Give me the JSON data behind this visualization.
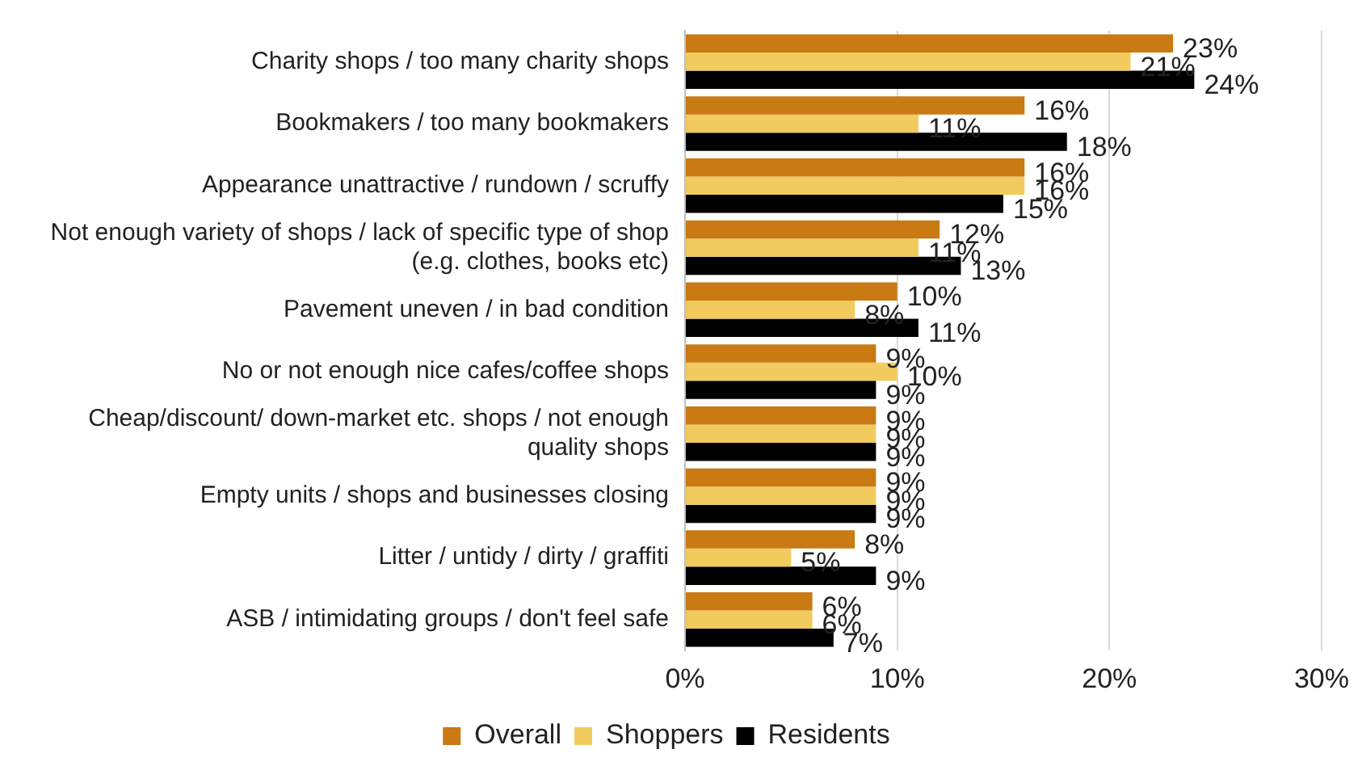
{
  "chart_data": {
    "type": "bar",
    "orientation": "horizontal",
    "categories": [
      "Charity shops / too many charity shops",
      "Bookmakers / too many bookmakers",
      "Appearance unattractive / rundown / scruffy",
      "Not enough variety of shops / lack of specific type of shop (e.g. clothes, books etc)",
      "Pavement uneven / in bad condition",
      "No or not enough nice cafes/coffee shops",
      "Cheap/discount/ down-market etc. shops / not enough quality shops",
      "Empty units / shops and businesses closing",
      "Litter / untidy / dirty / graffiti",
      "ASB / intimidating groups / don't feel safe"
    ],
    "series": [
      {
        "name": "Overall",
        "color": "#c97a12",
        "values": [
          23,
          16,
          16,
          12,
          10,
          9,
          9,
          9,
          8,
          6
        ],
        "value_labels": [
          "23%",
          "16%",
          "16%",
          "12%",
          "10%",
          "9%",
          "9%",
          "9%",
          "8%",
          "6%"
        ]
      },
      {
        "name": "Shoppers",
        "color": "#f2cb5e",
        "values": [
          21,
          11,
          16,
          11,
          8,
          10,
          9,
          9,
          5,
          6
        ],
        "value_labels": [
          "21%",
          "11%",
          "16%",
          "11%",
          "8%",
          "10%",
          "9%",
          "9%",
          "5%",
          "6%"
        ]
      },
      {
        "name": "Residents",
        "color": "#000000",
        "values": [
          24,
          18,
          15,
          13,
          11,
          9,
          9,
          9,
          9,
          7
        ],
        "value_labels": [
          "24%",
          "18%",
          "15%",
          "13%",
          "11%",
          "9%",
          "9%",
          "9%",
          "9%",
          "7%"
        ]
      }
    ],
    "xlim": [
      0,
      30
    ],
    "xticks": [
      {
        "value": 0,
        "label": "0%"
      },
      {
        "value": 10,
        "label": "10%"
      },
      {
        "value": 20,
        "label": "20%"
      },
      {
        "value": 30,
        "label": "30%"
      }
    ],
    "grid": "x",
    "legend": "bottom"
  }
}
